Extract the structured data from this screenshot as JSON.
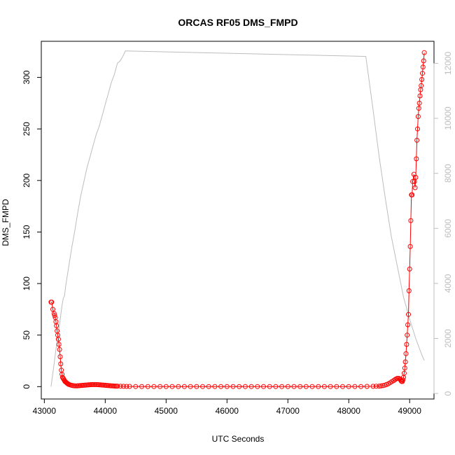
{
  "chart_data": {
    "type": "scatter",
    "title": "ORCAS RF05 DMS_FMPD",
    "xlabel": "UTC Seconds",
    "ylabel": "DMS_FMPD",
    "xlim": [
      42950,
      49400
    ],
    "ylim": [
      -12,
      335
    ],
    "y2lim": [
      -200,
      12800
    ],
    "grid": false,
    "legend": "none",
    "x_ticks": [
      "43000",
      "44000",
      "45000",
      "46000",
      "47000",
      "48000",
      "49000"
    ],
    "x_tick_values": [
      43000,
      44000,
      45000,
      46000,
      47000,
      48000,
      49000
    ],
    "y_ticks": [
      "0",
      "50",
      "100",
      "150",
      "200",
      "250",
      "300"
    ],
    "y_tick_values": [
      0,
      50,
      100,
      150,
      200,
      250,
      300
    ],
    "y2_ticks": [
      "0",
      "2000",
      "4000",
      "6000",
      "8000",
      "10000",
      "12000"
    ],
    "y2_tick_values": [
      0,
      2000,
      4000,
      6000,
      8000,
      10000,
      12000
    ],
    "colors": {
      "dms": "#ff0000",
      "altitude": "#bdbdbd",
      "axis": "#000000"
    },
    "series": [
      {
        "axis": "left",
        "style": "points-and-line",
        "color": "#ff0000",
        "x": [
          43110,
          43120,
          43140,
          43160,
          43170,
          43180,
          43190,
          43200,
          43210,
          43220,
          43230,
          43240,
          43250,
          43260,
          43270,
          43280,
          43290,
          43300,
          43310,
          43320,
          43330,
          43340,
          43350,
          43360,
          43370,
          43380,
          43390,
          43400,
          43420,
          43440,
          43460,
          43480,
          43500,
          43520,
          43540,
          43560,
          43580,
          43600,
          43620,
          43640,
          43660,
          43680,
          43700,
          43720,
          43740,
          43760,
          43780,
          43800,
          43820,
          43840,
          43860,
          43880,
          43900,
          43920,
          43940,
          43960,
          43980,
          44000,
          44020,
          44040,
          44060,
          44080,
          44100,
          44120,
          44140,
          44160,
          44180,
          44200,
          44250,
          44300,
          44350,
          44400,
          44500,
          44600,
          44700,
          44800,
          44900,
          45000,
          45100,
          45200,
          45300,
          45400,
          45500,
          45600,
          45700,
          45800,
          45900,
          46000,
          46100,
          46200,
          46300,
          46400,
          46500,
          46600,
          46700,
          46800,
          46900,
          47000,
          47100,
          47200,
          47300,
          47400,
          47500,
          47600,
          47700,
          47800,
          47900,
          48000,
          48100,
          48200,
          48300,
          48400,
          48450,
          48500,
          48530,
          48560,
          48590,
          48620,
          48650,
          48680,
          48710,
          48740,
          48760,
          48780,
          48800,
          48820,
          48840,
          48850,
          48860,
          48870,
          48880,
          48890,
          48900,
          48910,
          48920,
          48930,
          48940,
          48950,
          48960,
          48970,
          48980,
          48990,
          49000,
          49010,
          49020,
          49030,
          49040,
          49050,
          49070,
          49080,
          49090,
          49100,
          49110,
          49120,
          49130,
          49140,
          49150,
          49160,
          49170,
          49180,
          49190,
          49200,
          49210,
          49220,
          49230,
          49240
        ],
        "values": [
          82,
          82,
          75,
          71,
          69,
          67,
          63,
          59,
          54,
          50,
          46,
          41,
          36,
          29,
          22,
          16,
          12,
          9,
          8,
          7,
          6,
          5,
          4.5,
          4,
          3.5,
          3,
          2.6,
          2.2,
          1.8,
          1.4,
          1.1,
          0.9,
          0.8,
          0.8,
          0.8,
          0.9,
          1.0,
          1.1,
          1.2,
          1.3,
          1.4,
          1.5,
          1.6,
          1.7,
          1.8,
          1.9,
          2.0,
          2.0,
          2.0,
          2.0,
          2.0,
          1.9,
          1.8,
          1.7,
          1.6,
          1.5,
          1.4,
          1.3,
          1.2,
          1.1,
          1.0,
          0.9,
          0.8,
          0.7,
          0.6,
          0.5,
          0.5,
          0.5,
          0.4,
          0.3,
          0.2,
          0.2,
          0.1,
          0.1,
          0.1,
          0.1,
          0.1,
          0.1,
          0.1,
          0.1,
          0.1,
          0.1,
          0.1,
          0.1,
          0.1,
          0.1,
          0.1,
          0.1,
          0.1,
          0.1,
          0.1,
          0.1,
          0.1,
          0.1,
          0.1,
          0.1,
          0.1,
          0.1,
          0.1,
          0.1,
          0.1,
          0.1,
          0.1,
          0.1,
          0.1,
          0.1,
          0.1,
          0.1,
          0.1,
          0.1,
          0.2,
          0.3,
          0.4,
          0.5,
          0.7,
          1.0,
          1.4,
          2.0,
          2.8,
          3.8,
          5.0,
          6.0,
          6.8,
          7.5,
          8.0,
          8.0,
          7.5,
          6.5,
          5.5,
          5.0,
          5.0,
          6.5,
          9.0,
          13,
          18,
          24,
          32,
          41,
          50,
          60,
          70,
          93,
          114,
          136,
          161,
          186,
          186,
          199,
          206,
          199,
          193,
          203,
          221,
          239,
          250,
          262,
          270,
          275,
          282,
          288,
          292,
          298,
          304,
          310,
          316,
          324
        ]
      },
      {
        "axis": "right",
        "style": "line",
        "color": "#bdbdbd",
        "x": [
          43110,
          43150,
          43190,
          43230,
          43260,
          43290,
          43310,
          43330,
          43350,
          43400,
          43450,
          43500,
          43550,
          43600,
          43700,
          43750,
          43800,
          43850,
          43900,
          43950,
          44000,
          44050,
          44100,
          44150,
          44200,
          44250,
          44300,
          44330,
          48280,
          48320,
          48400,
          48500,
          48600,
          48700,
          48800,
          48900,
          49000,
          49100,
          49200,
          49240
        ],
        "values": [
          250,
          900,
          1600,
          2200,
          2700,
          3200,
          3450,
          3550,
          3900,
          4600,
          5300,
          5900,
          6600,
          7200,
          8200,
          8600,
          9000,
          9400,
          9700,
          10100,
          10500,
          10900,
          11300,
          11600,
          12000,
          12100,
          12300,
          12450,
          12250,
          11600,
          10300,
          8600,
          7100,
          5700,
          4600,
          3500,
          2700,
          2000,
          1400,
          1200
        ]
      }
    ]
  }
}
